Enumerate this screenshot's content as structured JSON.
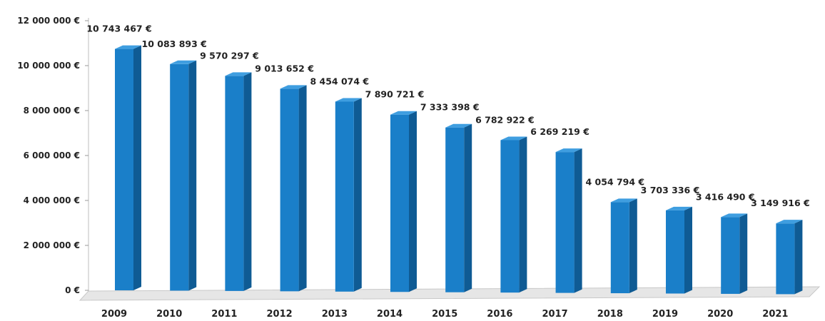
{
  "chart_data": {
    "type": "bar",
    "categories": [
      "2009",
      "2010",
      "2011",
      "2012",
      "2013",
      "2014",
      "2015",
      "2016",
      "2017",
      "2018",
      "2019",
      "2020",
      "2021"
    ],
    "values": [
      10743467,
      10083893,
      9570297,
      9013652,
      8454074,
      7890721,
      7333398,
      6782922,
      6269219,
      4054794,
      3703336,
      3416490,
      3149916
    ],
    "data_labels": [
      "10 743 467 €",
      "10 083 893 €",
      "9 570 297 €",
      "9 013 652 €",
      "8 454 074 €",
      "7 890 721 €",
      "7 333 398 €",
      "6 782 922 €",
      "6 269 219 €",
      "4 054 794 €",
      "3 703 336 €",
      "3 416 490 €",
      "3 149 916 €"
    ],
    "y_ticks": [
      0,
      2000000,
      4000000,
      6000000,
      8000000,
      10000000,
      12000000
    ],
    "y_tick_labels": [
      "0 €",
      "2 000 000 €",
      "4 000 000 €",
      "6 000 000 €",
      "8 000 000 €",
      "10 000 000 €",
      "12 000 000 €"
    ],
    "ylim": [
      0,
      12000000
    ],
    "title": "",
    "xlabel": "",
    "ylabel": "",
    "grid": false,
    "legend": "none",
    "style": "3d-column",
    "colors": {
      "bar_front": "#1a7fc9",
      "bar_side": "#0f5b94",
      "bar_top": "#3f9ee0",
      "floor": "#e6e6e6"
    }
  }
}
